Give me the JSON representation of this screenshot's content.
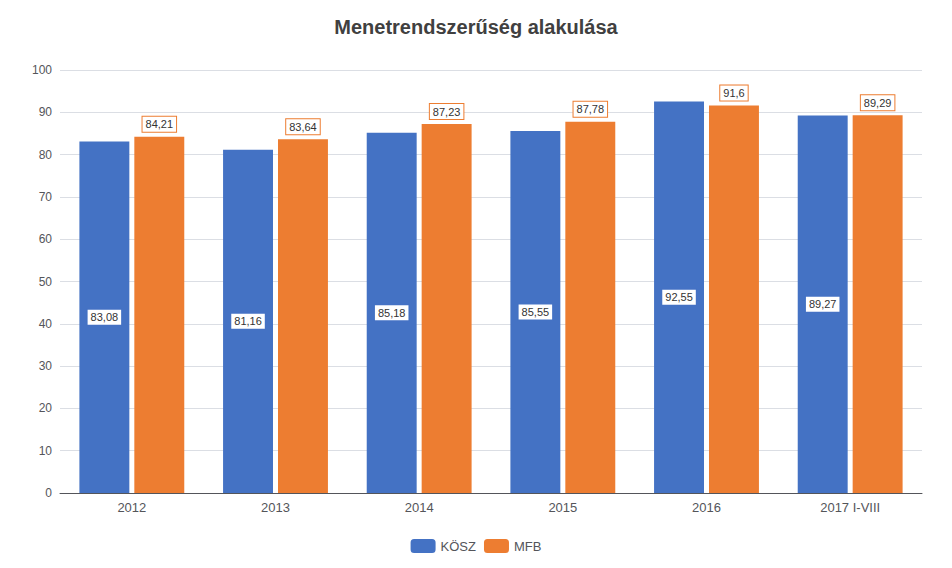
{
  "chart_data": {
    "type": "bar",
    "title": "Menetrendszerűség alakulása",
    "categories": [
      "2012",
      "2013",
      "2014",
      "2015",
      "2016",
      "2017 I-VIII"
    ],
    "series": [
      {
        "name": "KÖSZ",
        "color": "#4472C4",
        "values": [
          83.08,
          81.16,
          85.18,
          85.55,
          92.55,
          89.27
        ],
        "value_labels": [
          "83,08",
          "81,16",
          "85,18",
          "85,55",
          "92,55",
          "89,27"
        ]
      },
      {
        "name": "MFB",
        "color": "#ED7D31",
        "values": [
          84.21,
          83.64,
          87.23,
          87.78,
          91.6,
          89.29
        ],
        "value_labels": [
          "84,21",
          "83,64",
          "87,23",
          "87,78",
          "91,6",
          "89,29"
        ]
      }
    ],
    "ylim": [
      0,
      100
    ],
    "yticks": [
      0,
      10,
      20,
      30,
      40,
      50,
      60,
      70,
      80,
      90,
      100
    ],
    "grid": true,
    "legend": "bottom",
    "data_labels": true
  }
}
